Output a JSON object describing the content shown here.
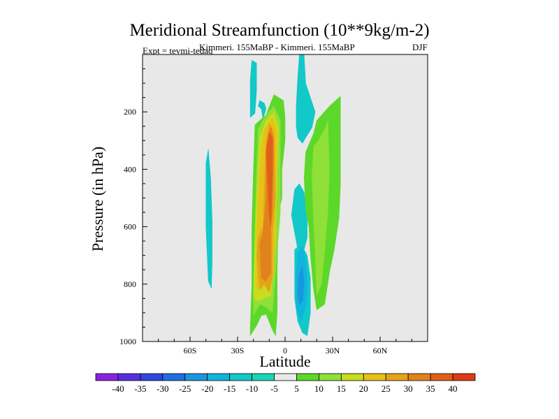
{
  "chart_data": {
    "type": "heatmap",
    "title": "Meridional Streamfunction (10**9kg/m-2)",
    "experiment_label": "Expt = tevmi-tedaq",
    "runs_label": "Kimmeri. 155MaBP - Kimmeri. 155MaBP",
    "season": "DJF",
    "xlabel": "Latitude",
    "ylabel": "Pressure (in hPa)",
    "xlim": [
      -90,
      90
    ],
    "ylim": [
      1000,
      0
    ],
    "x_ticks": [
      {
        "value": -60,
        "label": "60S"
      },
      {
        "value": -30,
        "label": "30S"
      },
      {
        "value": 0,
        "label": "0"
      },
      {
        "value": 30,
        "label": "30N"
      },
      {
        "value": 60,
        "label": "60N"
      }
    ],
    "y_ticks": [
      {
        "value": 200,
        "label": "200"
      },
      {
        "value": 400,
        "label": "400"
      },
      {
        "value": 600,
        "label": "600"
      },
      {
        "value": 800,
        "label": "800"
      },
      {
        "value": 1000,
        "label": "1000"
      }
    ],
    "background_color": "#e8e8e8",
    "colorbar": {
      "levels": [
        "-40",
        "-35",
        "-30",
        "-25",
        "-20",
        "-15",
        "-10",
        "-5",
        "5",
        "10",
        "15",
        "20",
        "25",
        "30",
        "35",
        "40"
      ],
      "colors": [
        "#8a22e2",
        "#5a2ee0",
        "#2f45dc",
        "#1e6ee0",
        "#1996e0",
        "#10b4dc",
        "#12c8c8",
        "#19d7b4",
        "#e8e8e8",
        "#5cd82a",
        "#8fe038",
        "#c8dc20",
        "#e8c018",
        "#e4a41a",
        "#e2821c",
        "#e06018",
        "#dc3c14"
      ]
    },
    "contours": [
      {
        "band": 6,
        "points": [
          [
            -48.5,
            330
          ],
          [
            -47,
            430
          ],
          [
            -46,
            580
          ],
          [
            -46,
            720
          ],
          [
            -46.5,
            815
          ],
          [
            -48.5,
            790
          ],
          [
            -50,
            600
          ],
          [
            -50,
            380
          ]
        ]
      },
      {
        "band": 6,
        "points": [
          [
            -22,
            220
          ],
          [
            -22,
            90
          ],
          [
            -21,
            20
          ],
          [
            -18,
            30
          ],
          [
            -18,
            125
          ],
          [
            -19,
            205
          ]
        ]
      },
      {
        "band": 6,
        "points": [
          [
            -14,
            225
          ],
          [
            -15,
            190
          ],
          [
            -17,
            180
          ],
          [
            -16,
            160
          ],
          [
            -13,
            170
          ],
          [
            -12,
            190
          ]
        ]
      },
      {
        "band": 6,
        "points": [
          [
            9,
            0
          ],
          [
            12,
            0
          ],
          [
            13,
            100
          ],
          [
            16,
            150
          ],
          [
            19,
            200
          ],
          [
            17,
            255
          ],
          [
            13,
            290
          ],
          [
            11,
            310
          ],
          [
            8,
            290
          ],
          [
            7,
            250
          ],
          [
            7,
            180
          ],
          [
            8,
            80
          ]
        ]
      },
      {
        "band": 6,
        "points": [
          [
            6,
            620
          ],
          [
            4,
            560
          ],
          [
            6,
            470
          ],
          [
            9,
            450
          ],
          [
            12,
            480
          ],
          [
            14,
            550
          ],
          [
            14,
            640
          ],
          [
            11,
            700
          ],
          [
            8,
            680
          ]
        ]
      },
      {
        "band": 6,
        "points": [
          [
            6,
            680
          ],
          [
            10,
            660
          ],
          [
            14,
            700
          ],
          [
            16,
            780
          ],
          [
            16,
            900
          ],
          [
            14,
            980
          ],
          [
            11,
            970
          ],
          [
            8,
            930
          ],
          [
            6,
            850
          ],
          [
            6,
            760
          ]
        ]
      },
      {
        "band": 9,
        "points": [
          [
            -22,
            980
          ],
          [
            -22,
            950
          ],
          [
            -21,
            800
          ],
          [
            -21,
            600
          ],
          [
            -20,
            400
          ],
          [
            -19,
            245
          ],
          [
            -12,
            210
          ],
          [
            -7,
            140
          ],
          [
            -1,
            160
          ],
          [
            0,
            220
          ],
          [
            0,
            300
          ],
          [
            -2,
            400
          ],
          [
            -2,
            500
          ],
          [
            -4,
            550
          ],
          [
            -5,
            750
          ],
          [
            -5,
            900
          ],
          [
            -6,
            980
          ],
          [
            -8,
            960
          ],
          [
            -12,
            905
          ],
          [
            -15,
            910
          ],
          [
            -18,
            945
          ]
        ]
      },
      {
        "band": 9,
        "points": [
          [
            12,
            430
          ],
          [
            13,
            340
          ],
          [
            18,
            275
          ],
          [
            20,
            230
          ],
          [
            28,
            180
          ],
          [
            35,
            145
          ],
          [
            35,
            450
          ],
          [
            34,
            570
          ],
          [
            31,
            680
          ],
          [
            28,
            760
          ],
          [
            25,
            870
          ],
          [
            20,
            890
          ],
          [
            18,
            820
          ],
          [
            16,
            700
          ],
          [
            15,
            600
          ],
          [
            13,
            540
          ]
        ]
      },
      {
        "band": 10,
        "points": [
          [
            -20,
            910
          ],
          [
            -20,
            800
          ],
          [
            -19,
            600
          ],
          [
            -18,
            400
          ],
          [
            -17,
            260
          ],
          [
            -12,
            210
          ],
          [
            -7,
            180
          ],
          [
            -3,
            230
          ],
          [
            -3,
            300
          ],
          [
            -3,
            550
          ],
          [
            -8,
            900
          ],
          [
            -12,
            880
          ],
          [
            -16,
            870
          ]
        ]
      },
      {
        "band": 10,
        "points": [
          [
            17,
            420
          ],
          [
            18,
            320
          ],
          [
            21,
            300
          ],
          [
            25,
            260
          ],
          [
            27,
            230
          ],
          [
            28,
            400
          ],
          [
            27,
            550
          ],
          [
            25,
            680
          ],
          [
            23,
            800
          ],
          [
            20,
            840
          ],
          [
            19,
            700
          ],
          [
            18,
            580
          ]
        ]
      },
      {
        "band": 11,
        "points": [
          [
            -20,
            850
          ],
          [
            -19,
            650
          ],
          [
            -18,
            500
          ],
          [
            -17,
            380
          ],
          [
            -16,
            290
          ],
          [
            -12,
            230
          ],
          [
            -7,
            200
          ],
          [
            -4,
            260
          ],
          [
            -5,
            400
          ],
          [
            -6,
            650
          ],
          [
            -9,
            840
          ],
          [
            -13,
            850
          ],
          [
            -17,
            860
          ]
        ]
      },
      {
        "band": 12,
        "points": [
          [
            -18,
            820
          ],
          [
            -18,
            650
          ],
          [
            -17,
            500
          ],
          [
            -15,
            330
          ],
          [
            -13,
            260
          ],
          [
            -8,
            220
          ],
          [
            -5,
            270
          ],
          [
            -6,
            500
          ],
          [
            -7,
            760
          ],
          [
            -10,
            830
          ],
          [
            -14,
            800
          ]
        ]
      },
      {
        "band": 13,
        "points": [
          [
            -16,
            820
          ],
          [
            -18,
            700
          ],
          [
            -17,
            640
          ],
          [
            -14,
            600
          ],
          [
            -13,
            450
          ],
          [
            -12,
            300
          ],
          [
            -10,
            240
          ],
          [
            -7,
            270
          ],
          [
            -6,
            500
          ],
          [
            -8,
            620
          ],
          [
            -8,
            770
          ],
          [
            -10,
            830
          ],
          [
            -13,
            800
          ]
        ]
      },
      {
        "band": 14,
        "points": [
          [
            -15,
            780
          ],
          [
            -16,
            660
          ],
          [
            -14,
            620
          ],
          [
            -12,
            500
          ],
          [
            -12,
            320
          ],
          [
            -9,
            250
          ],
          [
            -7,
            300
          ],
          [
            -8,
            550
          ],
          [
            -9,
            600
          ],
          [
            -9,
            760
          ],
          [
            -12,
            790
          ]
        ]
      },
      {
        "band": 15,
        "points": [
          [
            -11,
            440
          ],
          [
            -12,
            340
          ],
          [
            -10,
            270
          ],
          [
            -8,
            290
          ],
          [
            -8,
            420
          ],
          [
            -9,
            600
          ],
          [
            -10,
            560
          ]
        ]
      },
      {
        "band": 5,
        "points": [
          [
            7,
            880
          ],
          [
            7,
            770
          ],
          [
            8,
            690
          ],
          [
            11,
            670
          ],
          [
            13,
            720
          ],
          [
            14,
            810
          ],
          [
            13,
            880
          ],
          [
            10,
            930
          ]
        ]
      },
      {
        "band": 4,
        "points": [
          [
            8,
            830
          ],
          [
            9,
            760
          ],
          [
            11,
            740
          ],
          [
            12,
            800
          ],
          [
            11,
            860
          ],
          [
            9,
            870
          ]
        ]
      }
    ]
  }
}
